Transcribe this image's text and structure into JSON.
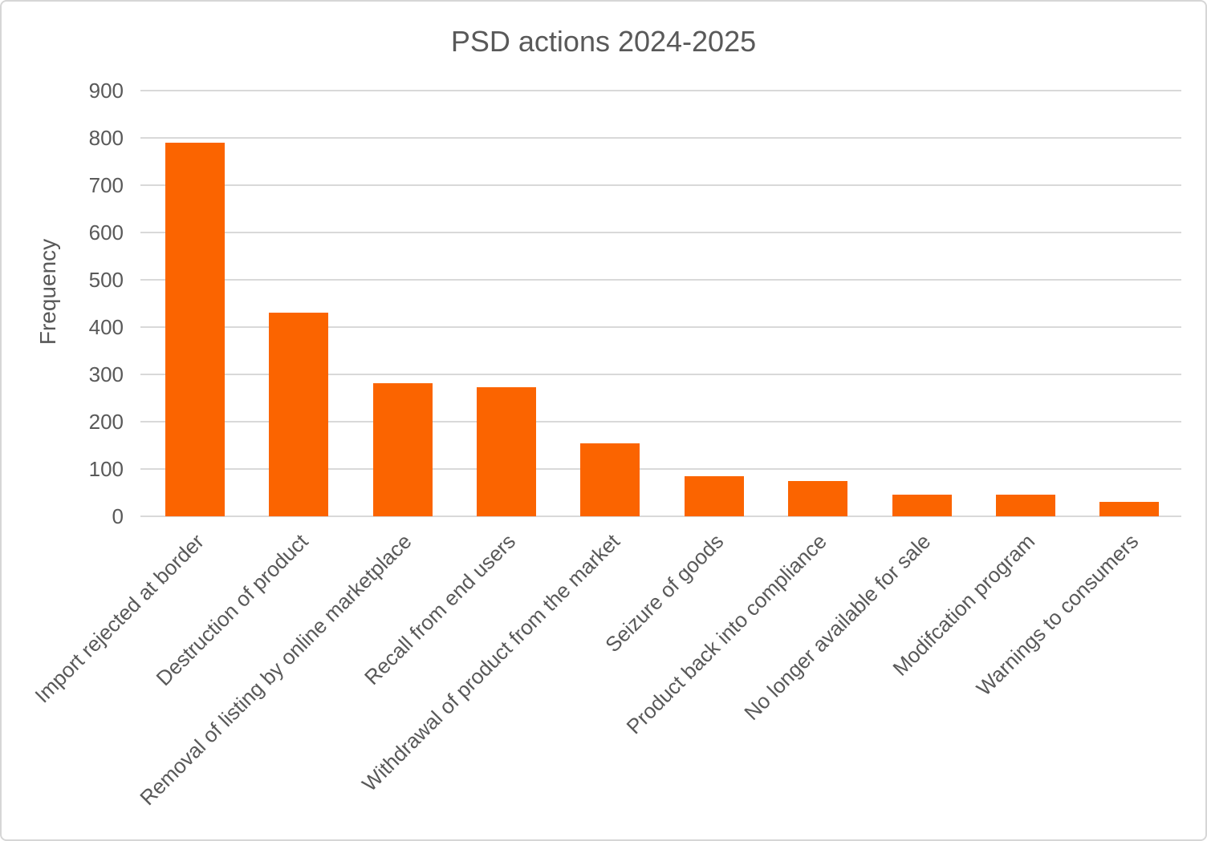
{
  "title": "PSD actions 2024-2025",
  "colors": {
    "bar": "#FB6400",
    "gridline": "#D9D9D9",
    "text": "#595959",
    "frame_border": "#D6D6D6",
    "background": "#FFFFFF"
  },
  "chart_data": {
    "type": "bar",
    "title": "PSD actions 2024-2025",
    "xlabel": "",
    "ylabel": "Frequency",
    "categories": [
      "Import rejected at border",
      "Destruction of product",
      "Removal of listing by online marketplace",
      "Recall from end users",
      "Withdrawal of product from the market",
      "Seizure of goods",
      "Product back into compliance",
      "No longer available for sale",
      "Modifcation program",
      "Warnings to consumers"
    ],
    "values": [
      790,
      430,
      282,
      273,
      155,
      85,
      75,
      45,
      45,
      30
    ],
    "ylim": [
      0,
      900
    ],
    "yticks": [
      0,
      100,
      200,
      300,
      400,
      500,
      600,
      700,
      800,
      900
    ],
    "grid": "horizontal",
    "legend": "none",
    "bar_color": "#FB6400",
    "category_label_rotation_deg": -45
  }
}
